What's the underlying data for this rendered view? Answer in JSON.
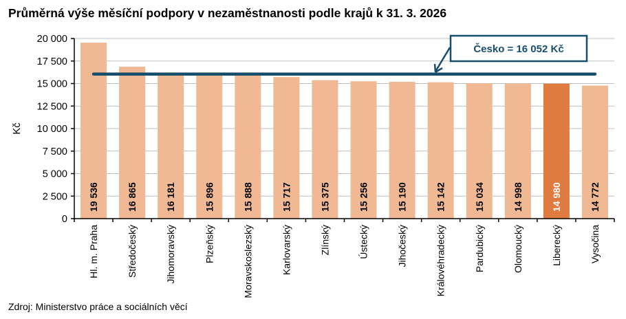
{
  "chart_data": {
    "type": "bar",
    "title": "Průměrná výše měsíční podpory v nezaměstnanosti podle krajů k 31. 3. 2026",
    "ylabel": "Kč",
    "xlabel": "",
    "ylim": [
      0,
      20000
    ],
    "yticks": [
      0,
      2500,
      5000,
      7500,
      10000,
      12500,
      15000,
      17500,
      20000
    ],
    "ytick_labels": [
      "0",
      "2 500",
      "5 000",
      "7 500",
      "10 000",
      "12 500",
      "15 000",
      "17 500",
      "20 000"
    ],
    "grid": true,
    "categories": [
      "Hl. m. Praha",
      "Středočeský",
      "Jihomoravský",
      "Plzeňský",
      "Moravskoslezský",
      "Karlovarský",
      "Zlínský",
      "Ústecký",
      "Jihočeský",
      "Královéhradecký",
      "Pardubický",
      "Olomoucký",
      "Liberecký",
      "Vysočina"
    ],
    "values": [
      19536,
      16865,
      16181,
      15896,
      15888,
      15717,
      15375,
      15256,
      15190,
      15142,
      15034,
      14998,
      14980,
      14772
    ],
    "value_labels": [
      "19 536",
      "16 865",
      "16 181",
      "15 896",
      "15 888",
      "15 717",
      "15 375",
      "15 256",
      "15 190",
      "15 142",
      "15 034",
      "14 998",
      "14 980",
      "14 772"
    ],
    "highlight_index": 12,
    "reference_line": {
      "value": 16052,
      "label": "Česko = 16 052 Kč"
    },
    "colors": {
      "bar": "#F0B893",
      "highlight": "#E07B40",
      "reference": "#174E6C",
      "grid": "#BFBFBF"
    }
  },
  "source": "Zdroj: Ministerstvo práce a sociálních věcí"
}
